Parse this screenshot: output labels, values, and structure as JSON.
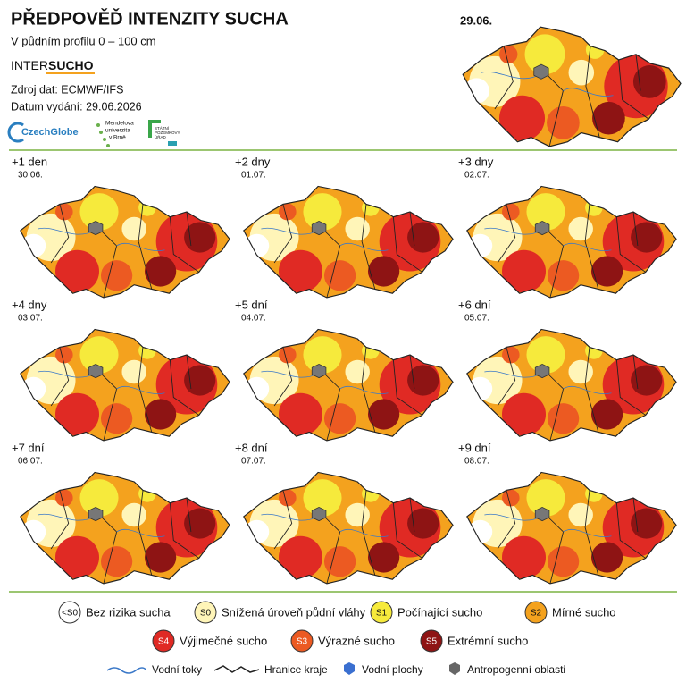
{
  "header": {
    "title": "PŘEDPOVĚĎ INTENZITY SUCHA",
    "subtitle": "V půdním profilu 0 – 100 cm",
    "brand_a": "INTER",
    "brand_b": "SUCHO",
    "source": "Zdroj dat: ECMWF/IFS",
    "issued": "Datum vydání:  29.06.2026",
    "logo_czechglobe": "CzechGlobe",
    "logo_mendel": [
      "Mendelova",
      "univerzita",
      "v Brně"
    ],
    "logo_spu": [
      "STÁTNÍ",
      "POZEMKOVÝ",
      "ÚŘAD"
    ]
  },
  "current": {
    "date": "29.06."
  },
  "forecasts": [
    {
      "label": "+1 den",
      "date": "30.06."
    },
    {
      "label": "+2 dny",
      "date": "01.07."
    },
    {
      "label": "+3 dny",
      "date": "02.07."
    },
    {
      "label": "+4 dny",
      "date": "03.07."
    },
    {
      "label": "+5 dní",
      "date": "04.07."
    },
    {
      "label": "+6 dní",
      "date": "05.07."
    },
    {
      "label": "+7 dní",
      "date": "06.07."
    },
    {
      "label": "+8 dní",
      "date": "07.07."
    },
    {
      "label": "+9 dní",
      "date": "08.07."
    }
  ],
  "legend": [
    {
      "code": "<S0",
      "label": "Bez rizika sucha",
      "color": "#ffffff"
    },
    {
      "code": "S0",
      "label": "Snížená úroveň půdní vláhy",
      "color": "#fff5b8"
    },
    {
      "code": "S1",
      "label": "Počínající sucho",
      "color": "#f6ea3c"
    },
    {
      "code": "S2",
      "label": "Mírné sucho",
      "color": "#f4a21e"
    },
    {
      "code": "S4",
      "label": "Výjimečné sucho",
      "color": "#e02a24"
    },
    {
      "code": "S3",
      "label": "Výrazné sucho",
      "color": "#ec5a22"
    },
    {
      "code": "S5",
      "label": "Extrémní sucho",
      "color": "#8e1414"
    }
  ],
  "symbols": [
    "Vodní toky",
    "Hranice kraje",
    "Vodní plochy",
    "Antropogenní oblasti"
  ]
}
